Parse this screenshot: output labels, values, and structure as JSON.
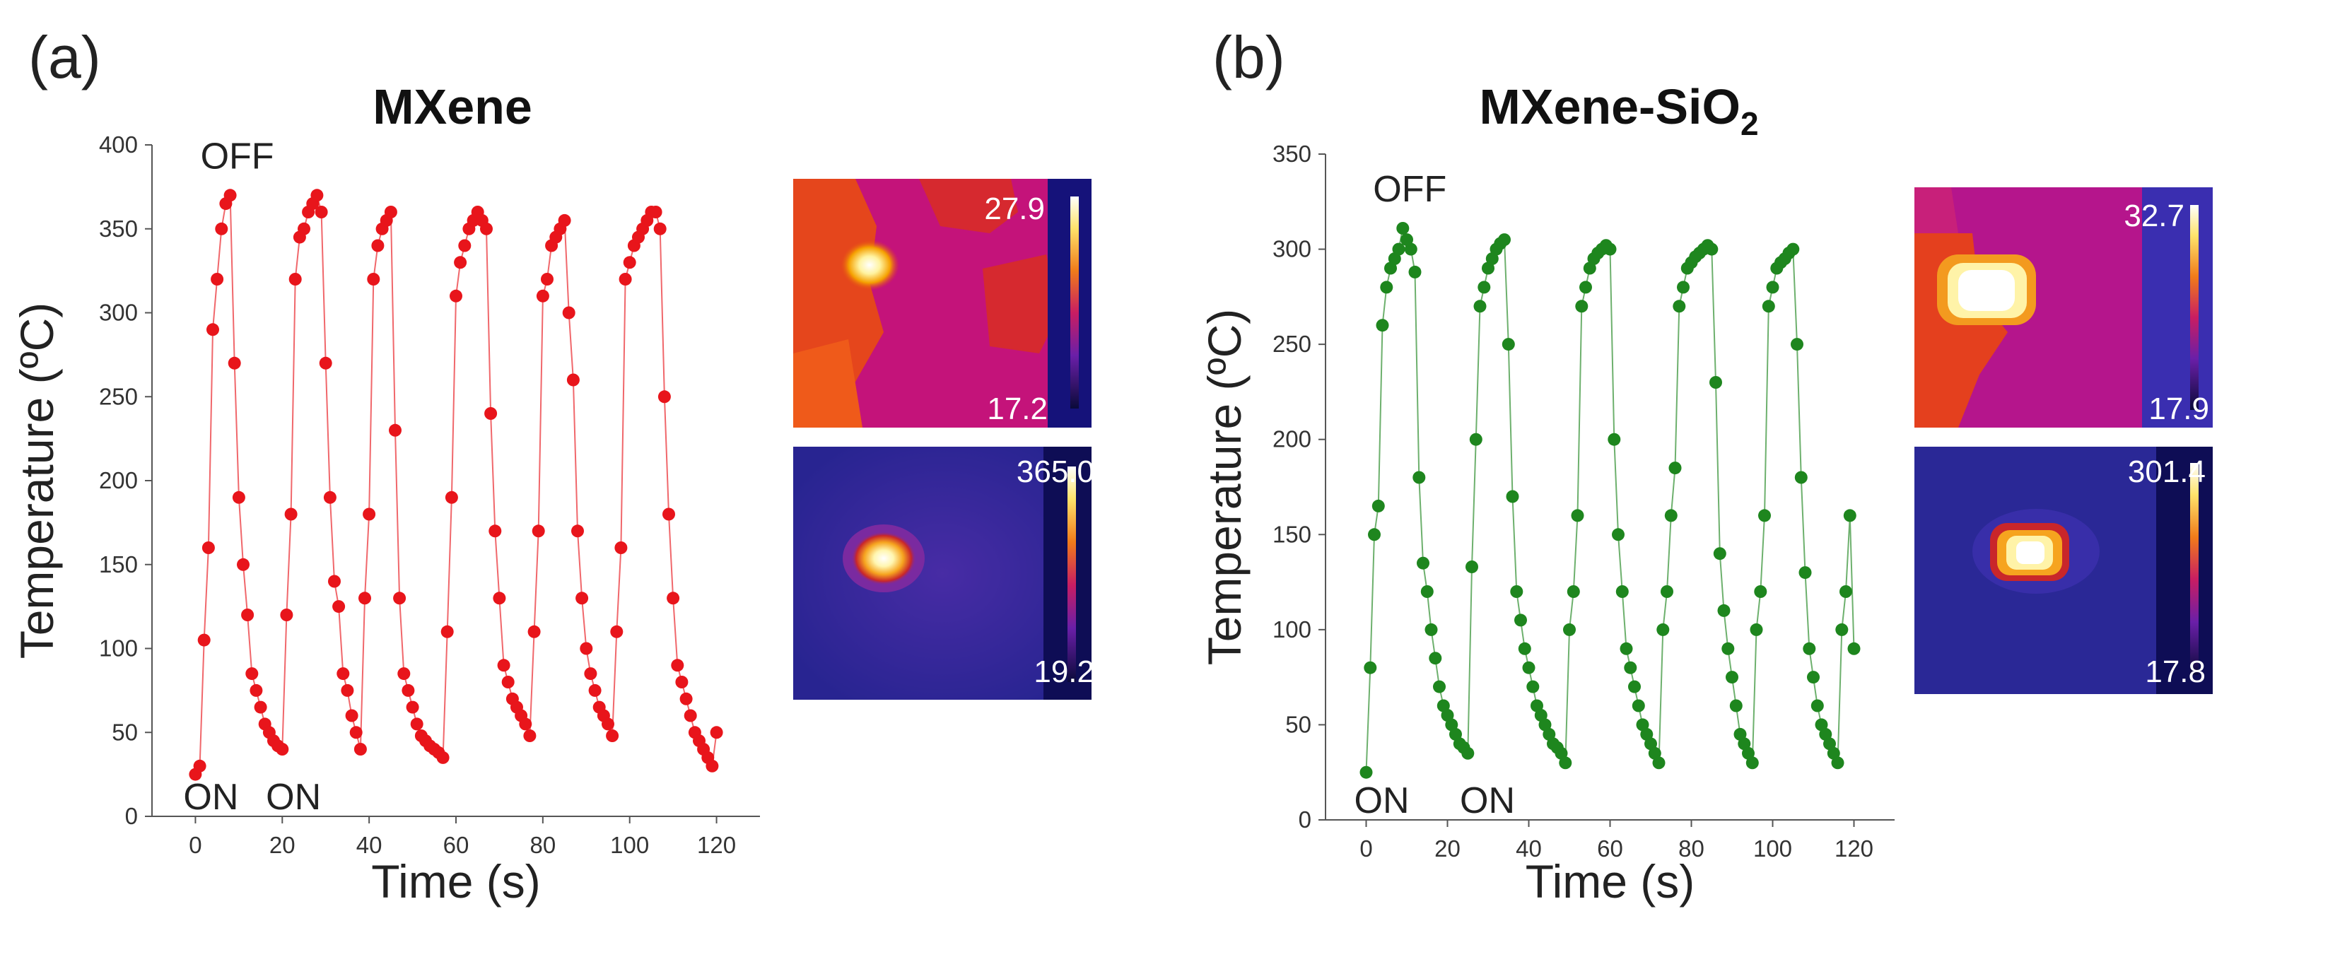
{
  "figure": {
    "panel_a_label": "(a)",
    "panel_b_label": "(b)"
  },
  "chart_data": [
    {
      "type": "line",
      "panel": "(a)",
      "title": "MXene",
      "xlabel": "Time (s)",
      "ylabel": "Temperature  (ºC)",
      "xlim": [
        -10,
        130
      ],
      "ylim": [
        0,
        400
      ],
      "xticks": [
        0,
        20,
        40,
        60,
        80,
        100,
        120
      ],
      "yticks": [
        0,
        50,
        100,
        150,
        200,
        250,
        300,
        350,
        400
      ],
      "color": "#e8151b",
      "annotations": [
        {
          "text": "OFF",
          "x": 8,
          "y": 370
        },
        {
          "text": "ON",
          "x": 0,
          "y": 28
        },
        {
          "text": "ON",
          "x": 19,
          "y": 40
        }
      ],
      "series": [
        {
          "name": "MXene",
          "x": [
            0,
            1,
            2,
            3,
            4,
            5,
            6,
            7,
            8,
            9,
            10,
            11,
            12,
            13,
            14,
            15,
            16,
            17,
            18,
            19,
            20,
            21,
            22,
            23,
            24,
            25,
            26,
            27,
            28,
            29,
            30,
            31,
            32,
            33,
            34,
            35,
            36,
            37,
            38,
            39,
            40,
            41,
            42,
            43,
            44,
            45,
            46,
            47,
            48,
            49,
            50,
            51,
            52,
            53,
            54,
            55,
            56,
            57,
            58,
            59,
            60,
            61,
            62,
            63,
            64,
            65,
            66,
            67,
            68,
            69,
            70,
            71,
            72,
            73,
            74,
            75,
            76,
            77,
            78,
            79,
            80,
            81,
            82,
            83,
            84,
            85,
            86,
            87,
            88,
            89,
            90,
            91,
            92,
            93,
            94,
            95,
            96,
            97,
            98,
            99,
            100,
            101,
            102,
            103,
            104,
            105,
            106,
            107,
            108,
            109,
            110,
            111,
            112,
            113,
            114,
            115,
            116,
            117,
            118,
            119,
            120
          ],
          "y": [
            25,
            30,
            105,
            160,
            290,
            320,
            350,
            365,
            370,
            270,
            190,
            150,
            120,
            85,
            75,
            65,
            55,
            50,
            45,
            42,
            40,
            120,
            180,
            320,
            345,
            350,
            360,
            365,
            370,
            360,
            270,
            190,
            140,
            125,
            85,
            75,
            60,
            50,
            40,
            130,
            180,
            320,
            340,
            350,
            355,
            360,
            230,
            130,
            85,
            75,
            65,
            55,
            48,
            45,
            42,
            40,
            38,
            35,
            110,
            190,
            310,
            330,
            340,
            350,
            355,
            360,
            355,
            350,
            240,
            170,
            130,
            90,
            80,
            70,
            65,
            60,
            55,
            48,
            110,
            170,
            310,
            320,
            340,
            345,
            350,
            355,
            300,
            260,
            170,
            130,
            100,
            85,
            75,
            65,
            60,
            55,
            48,
            110,
            160,
            320,
            330,
            340,
            345,
            350,
            355,
            360,
            360,
            350,
            250,
            180,
            130,
            90,
            80,
            70,
            60,
            50,
            45,
            40,
            35,
            30,
            50
          ]
        }
      ]
    },
    {
      "type": "line",
      "panel": "(b)",
      "title": "MXene-SiO2",
      "xlabel": "Time (s)",
      "ylabel": "Temperature  (ºC)",
      "xlim": [
        -10,
        130
      ],
      "ylim": [
        0,
        350
      ],
      "xticks": [
        0,
        20,
        40,
        60,
        80,
        100,
        120
      ],
      "yticks": [
        0,
        50,
        100,
        150,
        200,
        250,
        300,
        350
      ],
      "color": "#1e861e",
      "annotations": [
        {
          "text": "OFF",
          "x": 9,
          "y": 311
        },
        {
          "text": "ON",
          "x": 0,
          "y": 25
        },
        {
          "text": "ON",
          "x": 26,
          "y": 33
        }
      ],
      "series": [
        {
          "name": "MXene-SiO2",
          "x": [
            0,
            1,
            2,
            3,
            4,
            5,
            6,
            7,
            8,
            9,
            10,
            11,
            12,
            13,
            14,
            15,
            16,
            17,
            18,
            19,
            20,
            21,
            22,
            23,
            24,
            25,
            26,
            27,
            28,
            29,
            30,
            31,
            32,
            33,
            34,
            35,
            36,
            37,
            38,
            39,
            40,
            41,
            42,
            43,
            44,
            45,
            46,
            47,
            48,
            49,
            50,
            51,
            52,
            53,
            54,
            55,
            56,
            57,
            58,
            59,
            60,
            61,
            62,
            63,
            64,
            65,
            66,
            67,
            68,
            69,
            70,
            71,
            72,
            73,
            74,
            75,
            76,
            77,
            78,
            79,
            80,
            81,
            82,
            83,
            84,
            85,
            86,
            87,
            88,
            89,
            90,
            91,
            92,
            93,
            94,
            95,
            96,
            97,
            98,
            99,
            100,
            101,
            102,
            103,
            104,
            105,
            106,
            107,
            108,
            109,
            110,
            111,
            112,
            113,
            114,
            115,
            116,
            117,
            118,
            119,
            120
          ],
          "y": [
            25,
            80,
            150,
            165,
            260,
            280,
            290,
            295,
            300,
            311,
            305,
            300,
            288,
            180,
            135,
            120,
            100,
            85,
            70,
            60,
            55,
            50,
            45,
            40,
            38,
            35,
            133,
            200,
            270,
            280,
            290,
            295,
            300,
            303,
            305,
            250,
            170,
            120,
            105,
            90,
            80,
            70,
            60,
            55,
            50,
            45,
            40,
            38,
            35,
            30,
            100,
            120,
            160,
            270,
            280,
            290,
            295,
            298,
            300,
            302,
            300,
            200,
            150,
            120,
            90,
            80,
            70,
            60,
            50,
            45,
            40,
            35,
            30,
            100,
            120,
            160,
            185,
            270,
            280,
            290,
            293,
            296,
            298,
            300,
            302,
            300,
            230,
            140,
            110,
            90,
            75,
            60,
            45,
            40,
            35,
            30,
            100,
            120,
            160,
            270,
            280,
            290,
            293,
            295,
            298,
            300,
            250,
            180,
            130,
            90,
            75,
            60,
            50,
            45,
            40,
            35,
            30,
            100,
            120,
            160,
            90
          ]
        }
      ]
    }
  ],
  "thermal_images": [
    {
      "name": "mxene-off",
      "max": "27.9",
      "min": "17.2"
    },
    {
      "name": "mxene-on",
      "max": "365.0",
      "min": "19.2"
    },
    {
      "name": "sio2-off",
      "max": "32.7",
      "min": "17.9"
    },
    {
      "name": "sio2-on",
      "max": "301.4",
      "min": "17.8"
    }
  ]
}
